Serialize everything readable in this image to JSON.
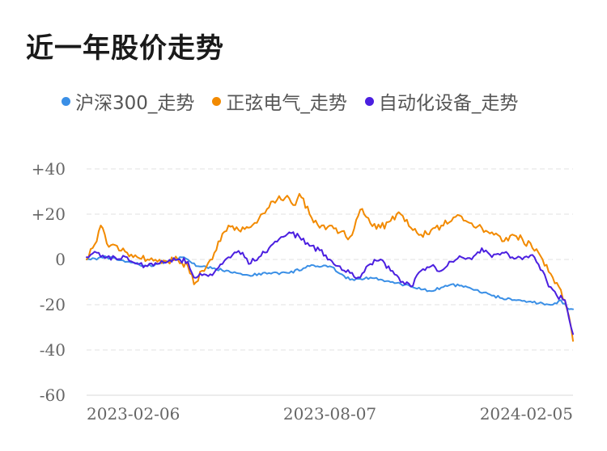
{
  "chart_data": {
    "type": "line",
    "title": "近一年股价走势",
    "xlabel": "",
    "ylabel": "",
    "ylim": [
      -60,
      40
    ],
    "yticks": [
      "+40",
      "+20",
      "0",
      "-20",
      "-40",
      "-60"
    ],
    "ytick_values": [
      40,
      20,
      0,
      -20,
      -40,
      -60
    ],
    "xticks": [
      "2023-02-06",
      "2023-08-07",
      "2024-02-05"
    ],
    "xtick_index": [
      0,
      120,
      240
    ],
    "grid": true,
    "legend_position": "top",
    "x_note": "index = approximate trading-day position, 0 = 2023-02-06, 240 = 2024-02-05",
    "series": [
      {
        "name": "沪深300_走势",
        "color": "#3a8fe6",
        "x": [
          0,
          10,
          20,
          30,
          40,
          48,
          55,
          62,
          70,
          80,
          90,
          100,
          110,
          120,
          130,
          140,
          150,
          160,
          170,
          180,
          190,
          200,
          210,
          220,
          230,
          234,
          238,
          240
        ],
        "values": [
          0,
          1,
          -1,
          -3,
          -1,
          1,
          -3,
          -4,
          -5,
          -7,
          -6,
          -6,
          -3,
          -3,
          -9,
          -8,
          -10,
          -12,
          -14,
          -11,
          -13,
          -16,
          -18,
          -19,
          -20,
          -18,
          -22,
          -22
        ]
      },
      {
        "name": "正弦电气_走势",
        "color": "#f28a00",
        "x": [
          0,
          5,
          7,
          10,
          15,
          20,
          25,
          30,
          35,
          40,
          45,
          50,
          53,
          57,
          62,
          65,
          70,
          75,
          80,
          85,
          90,
          95,
          100,
          103,
          105,
          110,
          115,
          120,
          125,
          130,
          135,
          140,
          145,
          150,
          155,
          160,
          165,
          170,
          175,
          180,
          185,
          190,
          195,
          200,
          205,
          210,
          215,
          220,
          225,
          230,
          233,
          236,
          238,
          240
        ],
        "values": [
          0,
          8,
          15,
          7,
          6,
          3,
          1,
          0,
          -1,
          -1,
          0,
          -3,
          -11,
          -5,
          0,
          8,
          15,
          13,
          14,
          18,
          23,
          28,
          27,
          24,
          29,
          20,
          14,
          15,
          12,
          10,
          22,
          16,
          14,
          17,
          20,
          14,
          11,
          13,
          15,
          17,
          19,
          16,
          14,
          12,
          8,
          11,
          9,
          5,
          0,
          -8,
          -12,
          -18,
          -25,
          -36
        ]
      },
      {
        "name": "自动化设备_走势",
        "color": "#4b1fe0",
        "x": [
          0,
          5,
          10,
          15,
          20,
          25,
          30,
          35,
          40,
          45,
          50,
          53,
          57,
          62,
          67,
          72,
          77,
          80,
          85,
          90,
          95,
          100,
          105,
          110,
          115,
          120,
          125,
          130,
          135,
          140,
          145,
          150,
          155,
          160,
          165,
          170,
          175,
          180,
          185,
          190,
          195,
          200,
          205,
          210,
          215,
          220,
          225,
          228,
          232,
          236,
          240
        ],
        "values": [
          1,
          3,
          1,
          0,
          1,
          -2,
          -3,
          -2,
          -1,
          0,
          -1,
          -8,
          -7,
          -7,
          -2,
          2,
          3,
          -2,
          1,
          5,
          9,
          12,
          10,
          6,
          4,
          0,
          -3,
          -6,
          -8,
          -2,
          0,
          -5,
          -10,
          -12,
          -5,
          -3,
          -5,
          -1,
          1,
          0,
          5,
          1,
          3,
          1,
          0,
          2,
          -5,
          -12,
          -16,
          -18,
          -33
        ]
      }
    ]
  }
}
